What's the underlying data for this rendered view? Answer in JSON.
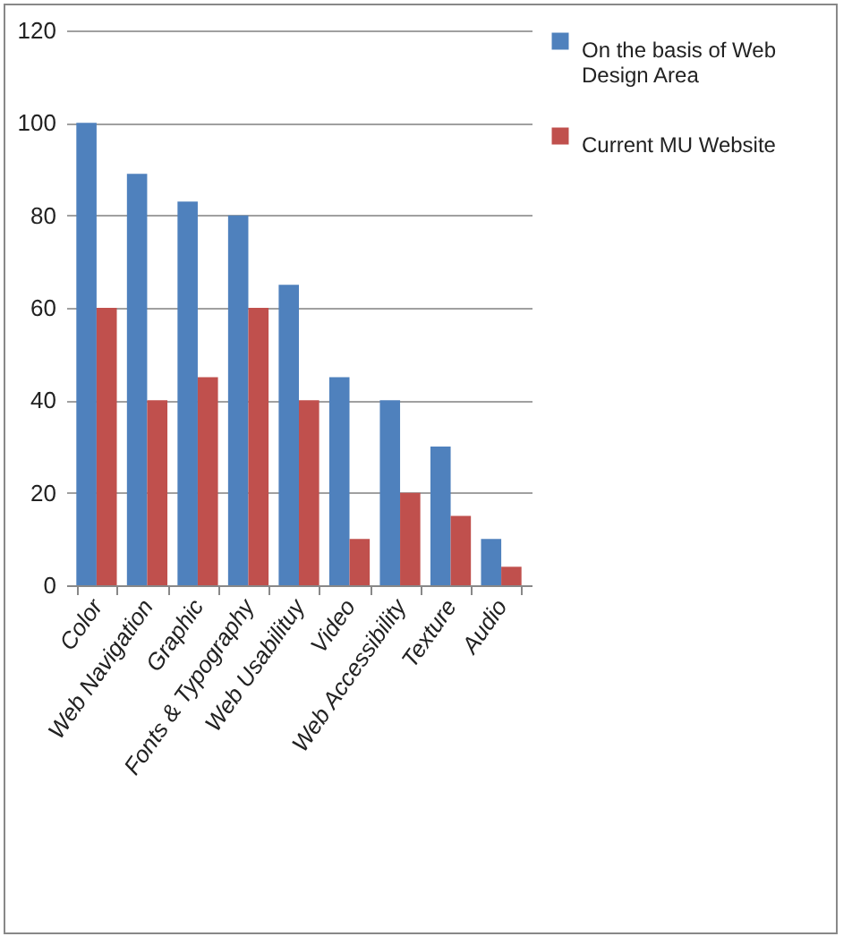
{
  "chart_data": {
    "type": "bar",
    "categories": [
      "Color",
      "Web Navigation",
      "Graphic",
      "Fonts & Typography",
      "Web Usabilituy",
      "Video",
      "Web Accessibility",
      "Texture",
      "Audio"
    ],
    "series": [
      {
        "name": "On the basis of Web Design Area",
        "color": "#4f81bd",
        "values": [
          100,
          89,
          83,
          80,
          65,
          45,
          40,
          30,
          10
        ]
      },
      {
        "name": "Current MU Website",
        "color": "#c0504d",
        "values": [
          60,
          40,
          45,
          60,
          40,
          10,
          20,
          15,
          4
        ]
      }
    ],
    "ylim": [
      0,
      120
    ],
    "yticks": [
      0,
      20,
      40,
      60,
      80,
      100,
      120
    ],
    "grid": "y",
    "legend": "right"
  }
}
